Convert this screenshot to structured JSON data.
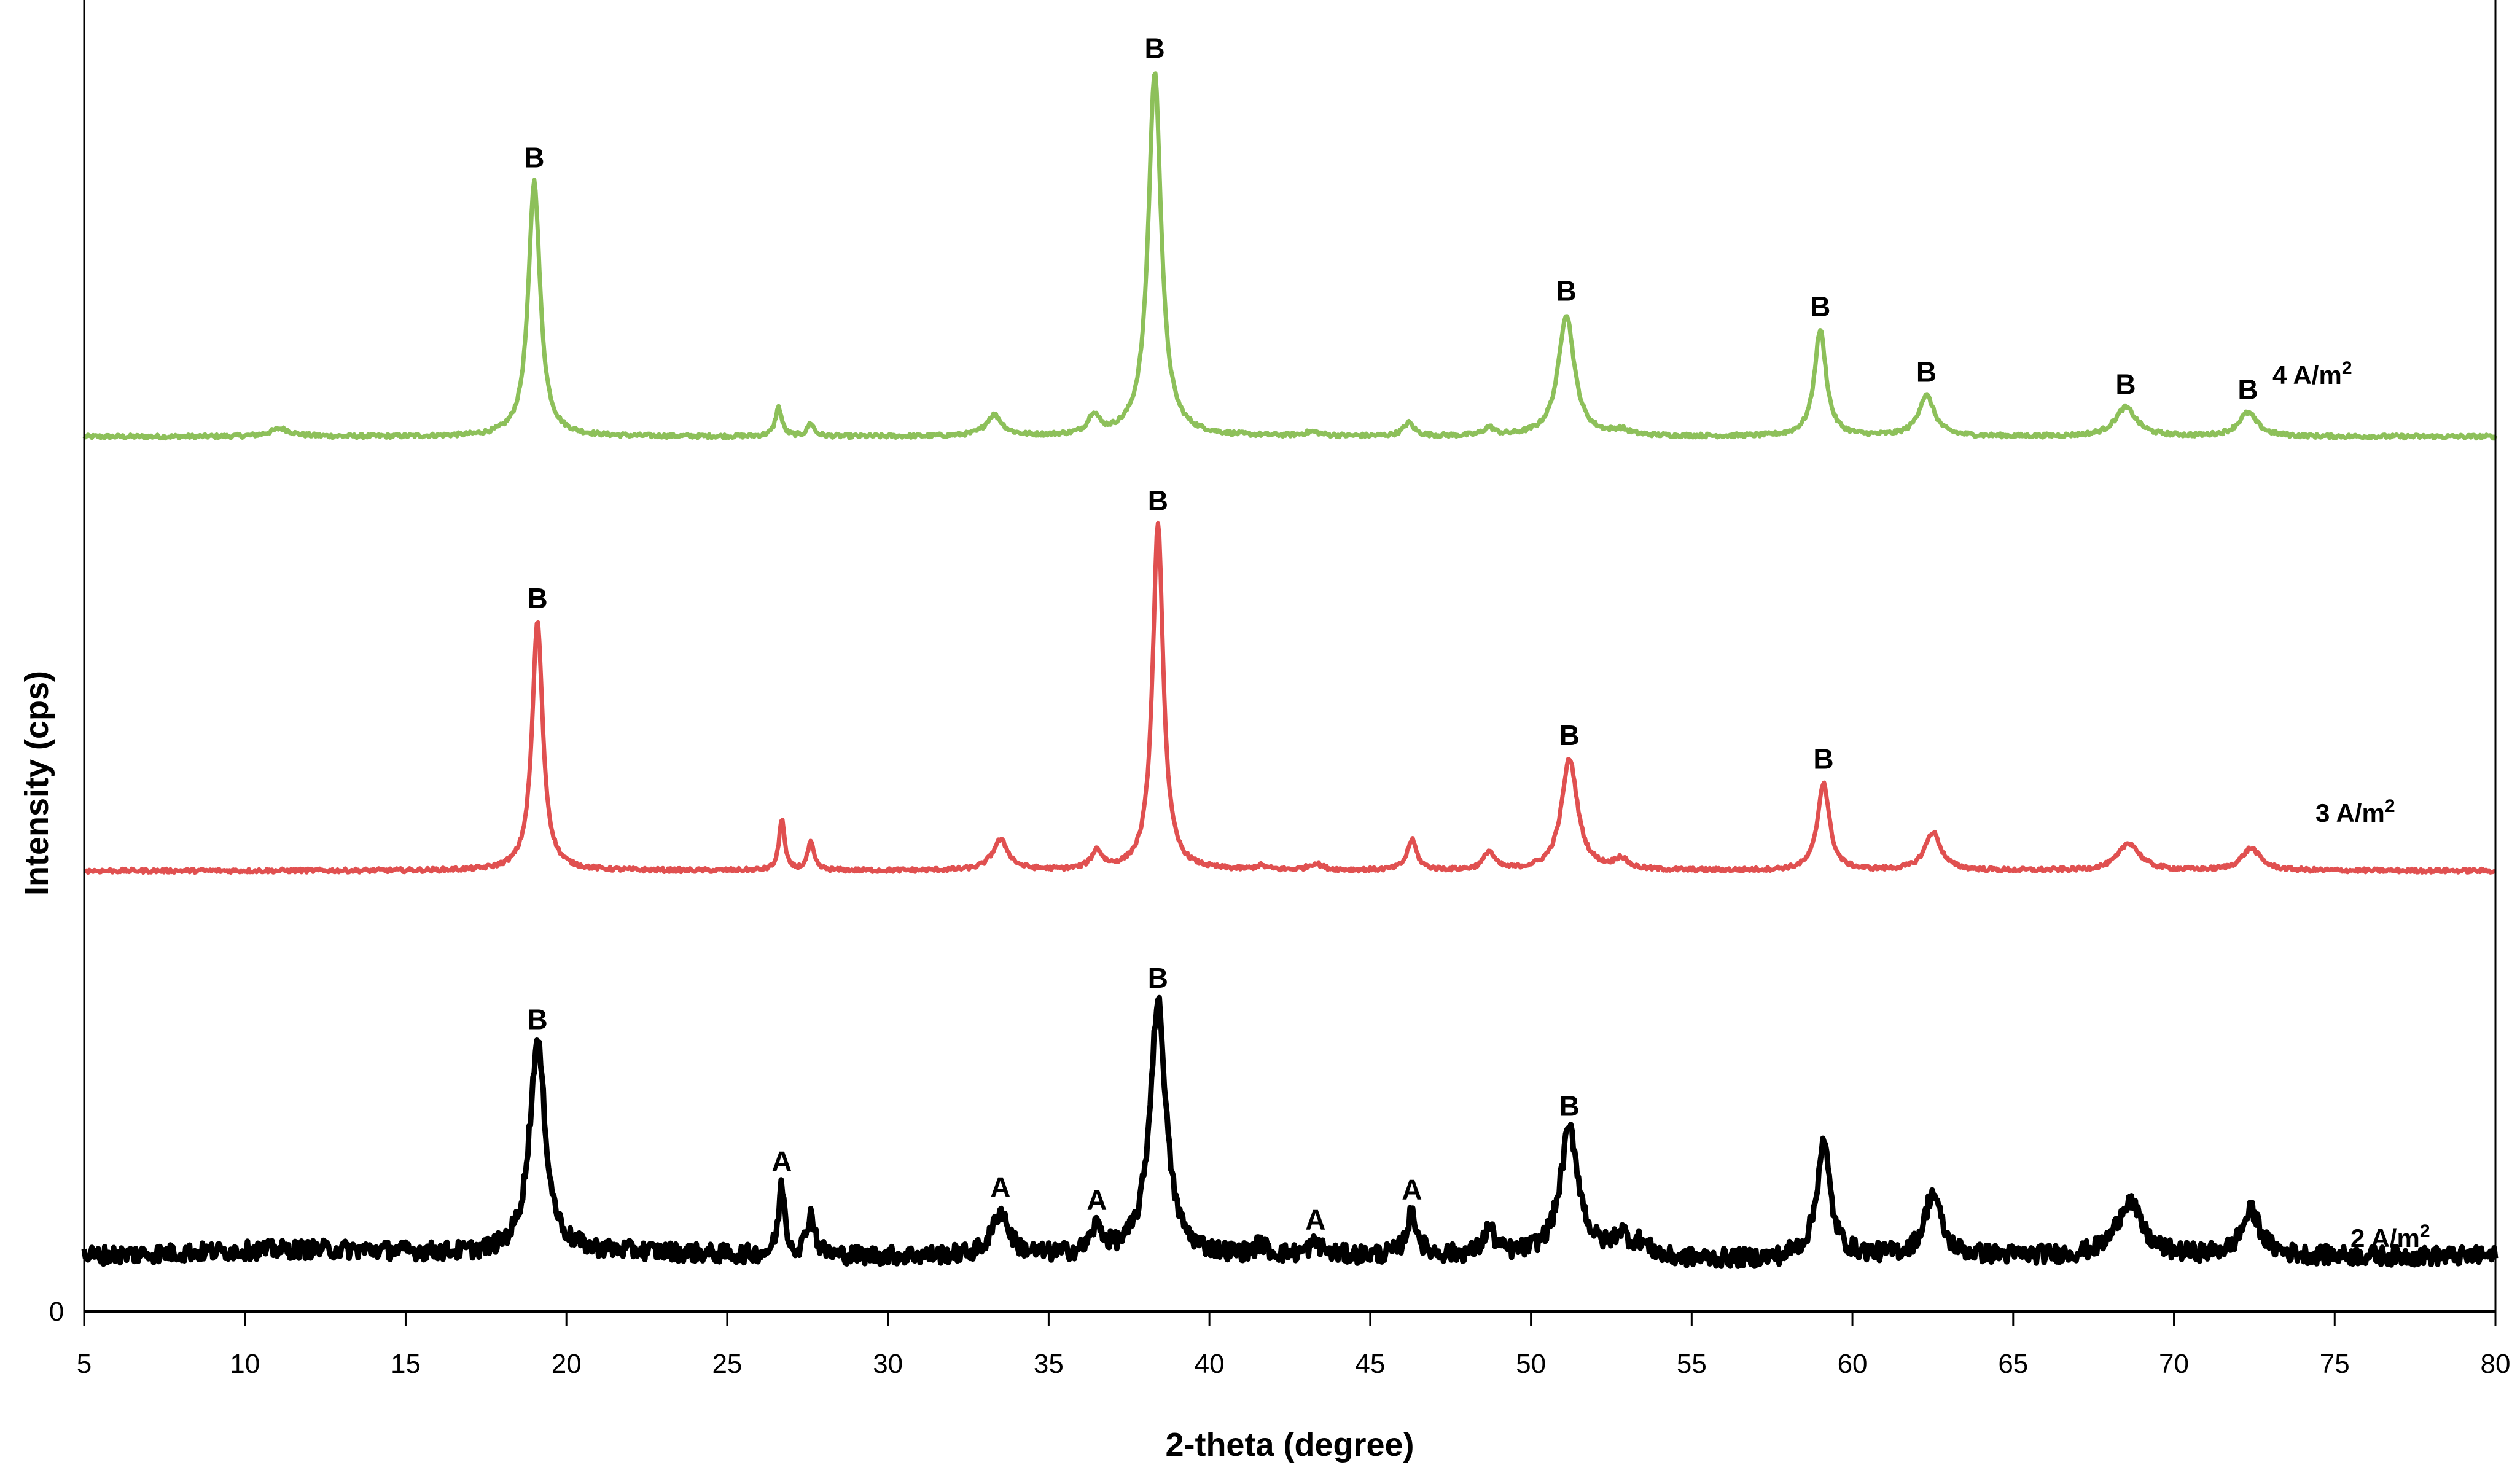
{
  "chart_data": {
    "type": "line",
    "title": "",
    "xlabel": "2-theta (degree)",
    "ylabel": "Intensity (cps)",
    "xlim": [
      5,
      80
    ],
    "ylim": [
      0,
      100
    ],
    "x_ticks": [
      "5",
      "10",
      "15",
      "20",
      "25",
      "30",
      "35",
      "40",
      "45",
      "50",
      "55",
      "60",
      "65",
      "70",
      "75",
      "80"
    ],
    "y_ticks": [
      "0"
    ],
    "grid": false,
    "legend": "none (series labelled inline at right)",
    "series": [
      {
        "name": "4 A/m2",
        "label": "4 A/m",
        "label_sup": "2",
        "color": "#8dc05a",
        "baseline": 66.7,
        "noise": 0.15,
        "peaks": [
          [
            11.1,
            0.6,
            0.4
          ],
          [
            19.0,
            19.5,
            0.22
          ],
          [
            26.6,
            2.2,
            0.12
          ],
          [
            27.6,
            1.0,
            0.12
          ],
          [
            33.3,
            1.6,
            0.3
          ],
          [
            36.4,
            1.5,
            0.2
          ],
          [
            38.3,
            27.8,
            0.24
          ],
          [
            43.2,
            0.3,
            0.3
          ],
          [
            46.2,
            1.0,
            0.2
          ],
          [
            48.7,
            0.6,
            0.2
          ],
          [
            51.1,
            9.3,
            0.3
          ],
          [
            52.8,
            0.4,
            0.3
          ],
          [
            59.0,
            8.1,
            0.22
          ],
          [
            62.3,
            3.1,
            0.3
          ],
          [
            68.5,
            2.2,
            0.4
          ],
          [
            72.3,
            1.8,
            0.35
          ]
        ],
        "annotations": [
          {
            "x": 19.0,
            "text": "B"
          },
          {
            "x": 38.3,
            "text": "B"
          },
          {
            "x": 51.1,
            "text": "B"
          },
          {
            "x": 59.0,
            "text": "B"
          },
          {
            "x": 62.3,
            "text": "B"
          },
          {
            "x": 68.5,
            "text": "B"
          },
          {
            "x": 72.3,
            "text": "B"
          }
        ]
      },
      {
        "name": "3 A/m2",
        "label": "3 A/m",
        "label_sup": "2",
        "color": "#e05050",
        "baseline": 33.6,
        "noise": 0.15,
        "peaks": [
          [
            19.1,
            19.0,
            0.2
          ],
          [
            26.7,
            4.0,
            0.1
          ],
          [
            27.6,
            2.1,
            0.12
          ],
          [
            33.5,
            2.3,
            0.3
          ],
          [
            36.5,
            1.4,
            0.2
          ],
          [
            38.4,
            26.4,
            0.2
          ],
          [
            41.6,
            0.3,
            0.2
          ],
          [
            43.3,
            0.5,
            0.25
          ],
          [
            46.3,
            2.3,
            0.18
          ],
          [
            48.7,
            1.4,
            0.2
          ],
          [
            51.2,
            8.5,
            0.3
          ],
          [
            52.8,
            0.8,
            0.25
          ],
          [
            59.1,
            6.7,
            0.22
          ],
          [
            62.5,
            2.9,
            0.3
          ],
          [
            68.6,
            2.1,
            0.4
          ],
          [
            72.4,
            1.7,
            0.35
          ]
        ],
        "annotations": [
          {
            "x": 19.1,
            "text": "B"
          },
          {
            "x": 38.4,
            "text": "B"
          },
          {
            "x": 51.2,
            "text": "B"
          },
          {
            "x": 59.1,
            "text": "B"
          }
        ]
      },
      {
        "name": "2 A/m2",
        "label": "2 A/m",
        "label_sup": "2",
        "color": "#000000",
        "baseline": 4.2,
        "noise": 0.7,
        "peaks": [
          [
            19.1,
            16.1,
            0.3
          ],
          [
            26.7,
            5.3,
            0.12
          ],
          [
            27.6,
            3.2,
            0.15
          ],
          [
            33.5,
            3.4,
            0.3
          ],
          [
            36.5,
            2.0,
            0.22
          ],
          [
            38.4,
            19.4,
            0.3
          ],
          [
            41.6,
            0.8,
            0.2
          ],
          [
            43.3,
            0.9,
            0.25
          ],
          [
            46.3,
            3.2,
            0.2
          ],
          [
            48.7,
            2.0,
            0.2
          ],
          [
            51.2,
            9.6,
            0.35
          ],
          [
            52.8,
            1.5,
            0.25
          ],
          [
            53.4,
            0.8,
            0.25
          ],
          [
            59.1,
            8.6,
            0.25
          ],
          [
            62.5,
            4.8,
            0.3
          ],
          [
            68.6,
            4.2,
            0.45
          ],
          [
            72.4,
            3.4,
            0.35
          ]
        ],
        "annotations": [
          {
            "x": 19.1,
            "text": "B"
          },
          {
            "x": 26.7,
            "text": "A"
          },
          {
            "x": 33.5,
            "text": "A"
          },
          {
            "x": 36.5,
            "text": "A"
          },
          {
            "x": 38.4,
            "text": "B"
          },
          {
            "x": 43.3,
            "text": "A"
          },
          {
            "x": 46.3,
            "text": "A"
          },
          {
            "x": 51.2,
            "text": "B"
          }
        ]
      }
    ]
  }
}
